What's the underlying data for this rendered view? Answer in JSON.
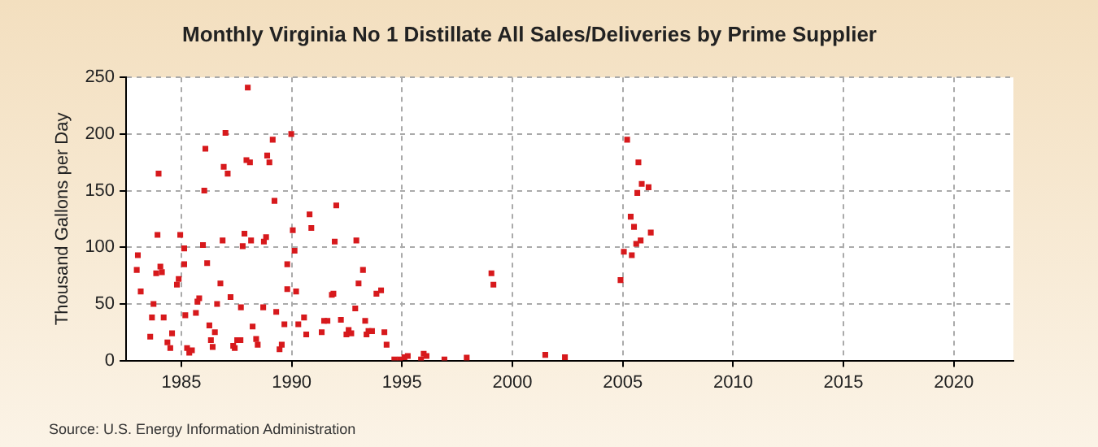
{
  "chart_data": {
    "type": "scatter",
    "title": "Monthly Virginia No 1 Distillate All Sales/Deliveries by Prime Supplier",
    "ylabel": "Thousand Gallons per Day",
    "annotations": [
      "Source: U.S. Energy Information Administration"
    ],
    "x": [
      1983.03,
      1982.98,
      1983.16,
      1983.92,
      1983.97,
      1983.74,
      1984.05,
      1984.12,
      1983.86,
      1983.67,
      1984.2,
      1983.59,
      1984.37,
      1984.5,
      1984.58,
      1984.8,
      1984.88,
      1984.95,
      1985.13,
      1985.13,
      1985.18,
      1985.26,
      1985.36,
      1985.48,
      1985.66,
      1985.73,
      1985.81,
      1985.98,
      1986.09,
      1986.04,
      1986.17,
      1986.27,
      1986.34,
      1986.42,
      1986.52,
      1986.62,
      1986.77,
      1986.87,
      1986.92,
      1987.0,
      1987.1,
      1987.23,
      1987.35,
      1987.42,
      1987.53,
      1987.68,
      1987.7,
      1987.78,
      1987.86,
      1987.95,
      1988.11,
      1988.01,
      1988.16,
      1988.23,
      1988.39,
      1988.46,
      1989.14,
      1988.89,
      1988.99,
      1989.98,
      1989.22,
      1988.74,
      1988.84,
      1988.71,
      1989.3,
      1989.67,
      1989.8,
      1989.8,
      1990.05,
      1990.13,
      1990.2,
      1989.55,
      1989.45,
      1990.3,
      1990.56,
      1990.66,
      1990.81,
      1990.89,
      1991.47,
      1991.62,
      1991.36,
      1991.95,
      1992.02,
      1991.82,
      1991.89,
      1992.23,
      1992.48,
      1992.58,
      1992.7,
      1992.88,
      1992.93,
      1993.03,
      1993.23,
      1993.33,
      1993.39,
      1993.48,
      1993.64,
      1993.84,
      1994.05,
      1994.2,
      1994.3,
      1994.65,
      1994.9,
      1995.11,
      1995.26,
      1995.86,
      1995.98,
      1996.11,
      1996.92,
      1997.93,
      1999.05,
      1999.14,
      2001.49,
      2002.38,
      2005.2,
      2005.71,
      2005.86,
      2006.17,
      2005.66,
      2005.36,
      2005.51,
      2006.27,
      2005.81,
      2005.61,
      2005.05,
      2005.41,
      2004.9
    ],
    "series": [
      {
        "color": "#d7191c",
        "values": [
          93,
          80,
          61,
          111,
          165,
          50,
          83,
          78,
          77,
          38,
          38,
          21,
          16,
          11,
          24,
          67,
          72,
          111,
          85,
          99,
          40,
          11,
          7,
          9,
          42,
          52,
          55,
          102,
          187,
          150,
          86,
          31,
          18,
          12,
          25,
          50,
          68,
          106,
          171,
          201,
          165,
          56,
          13,
          11,
          18,
          18,
          47,
          101,
          112,
          177,
          175,
          241,
          106,
          30,
          19,
          14,
          195,
          181,
          175,
          200,
          141,
          105,
          109,
          47,
          43,
          32,
          63,
          85,
          115,
          97,
          61,
          14,
          10,
          32,
          38,
          23,
          129,
          117,
          35,
          35,
          25,
          105,
          137,
          58,
          59,
          36,
          23,
          27,
          24,
          46,
          106,
          68,
          80,
          35,
          23,
          26,
          26,
          59,
          62,
          25,
          14,
          1,
          1,
          3,
          4,
          1,
          6,
          4,
          1,
          2.5,
          77,
          67,
          5,
          3,
          195,
          175,
          156,
          153,
          148,
          127,
          118,
          113,
          106,
          103,
          96,
          93,
          71
        ]
      }
    ],
    "xlim": [
      1982.5,
      2022.7
    ],
    "xticks": [
      1985,
      1990,
      1995,
      2000,
      2005,
      2010,
      2015,
      2020
    ],
    "ylim": [
      0,
      250
    ],
    "yticks": [
      0,
      50,
      100,
      150,
      200,
      250
    ],
    "grid": true,
    "marker": "square",
    "legend": false
  }
}
